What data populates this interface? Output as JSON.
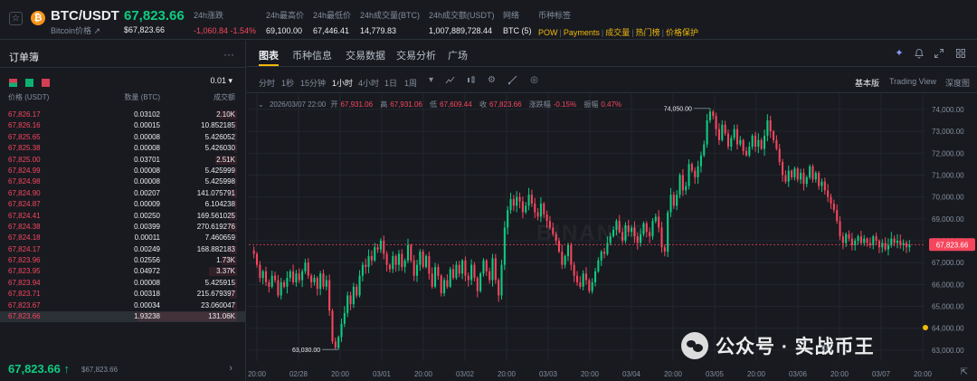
{
  "header": {
    "pair": "BTC/USDT",
    "pair_sub": "Bitcoin价格 ↗",
    "coin_symbol": "₿",
    "price": "67,823.66",
    "price_usd": "$67,823.66",
    "stats": [
      {
        "label": "24h涨跌",
        "value": "-1,060.84 -1.54%",
        "negative": true
      },
      {
        "label": "24h最高价",
        "value": "69,100.00",
        "negative": false
      },
      {
        "label": "24h最低价",
        "value": "67,446.41",
        "negative": false
      },
      {
        "label": "24h成交量(BTC)",
        "value": "14,779.83",
        "negative": false
      },
      {
        "label": "24h成交额(USDT)",
        "value": "1,007,889,728.44",
        "negative": false
      },
      {
        "label": "网络",
        "value": "BTC (5)",
        "negative": false
      }
    ],
    "tags_label": "币种标签",
    "tags": [
      "POW",
      "Payments",
      "成交量",
      "热门榜",
      "价格保护"
    ]
  },
  "orderbook": {
    "title": "订单簿",
    "more": "···",
    "precision": "0.01 ▾",
    "col_price": "价格 (USDT)",
    "col_qty": "数量 (BTC)",
    "col_total": "成交额",
    "rows": [
      {
        "price": "67,826.17",
        "qty": "0.03102",
        "total": "2.10K",
        "depth": 0.18
      },
      {
        "price": "67,826.16",
        "qty": "0.00015",
        "total": "10.852185",
        "depth": 0.04
      },
      {
        "price": "67,825.65",
        "qty": "0.00008",
        "total": "5.426052",
        "depth": 0.03
      },
      {
        "price": "67,825.38",
        "qty": "0.00008",
        "total": "5.426030",
        "depth": 0.03
      },
      {
        "price": "67,825.00",
        "qty": "0.03701",
        "total": "2.51K",
        "depth": 0.22
      },
      {
        "price": "67,824.99",
        "qty": "0.00008",
        "total": "5.425999",
        "depth": 0.03
      },
      {
        "price": "67,824.98",
        "qty": "0.00008",
        "total": "5.425998",
        "depth": 0.03
      },
      {
        "price": "67,824.90",
        "qty": "0.00207",
        "total": "141.075791",
        "depth": 0.06
      },
      {
        "price": "67,824.87",
        "qty": "0.00009",
        "total": "6.104238",
        "depth": 0.03
      },
      {
        "price": "67,824.41",
        "qty": "0.00250",
        "total": "169.561025",
        "depth": 0.07
      },
      {
        "price": "67,824.38",
        "qty": "0.00399",
        "total": "270.619276",
        "depth": 0.08
      },
      {
        "price": "67,824.18",
        "qty": "0.00011",
        "total": "7.460659",
        "depth": 0.03
      },
      {
        "price": "67,824.17",
        "qty": "0.00249",
        "total": "168.882183",
        "depth": 0.07
      },
      {
        "price": "67,823.96",
        "qty": "0.02556",
        "total": "1.73K",
        "depth": 0.15
      },
      {
        "price": "67,823.95",
        "qty": "0.04972",
        "total": "3.37K",
        "depth": 0.28
      },
      {
        "price": "67,823.94",
        "qty": "0.00008",
        "total": "5.425915",
        "depth": 0.03
      },
      {
        "price": "67,823.71",
        "qty": "0.00318",
        "total": "215.679397",
        "depth": 0.07
      },
      {
        "price": "67,823.67",
        "qty": "0.00034",
        "total": "23.060047",
        "depth": 0.04
      },
      {
        "price": "67,823.66",
        "qty": "1.93238",
        "total": "131.06K",
        "depth": 1.0
      }
    ],
    "last_price": "67,823.66 ↑",
    "last_usd": "$67,823.66",
    "arrow": "›"
  },
  "tabs": [
    "图表",
    "币种信息",
    "交易数据",
    "交易分析",
    "广场"
  ],
  "toolbar": {
    "timeframes": [
      "分时",
      "1秒",
      "15分钟",
      "1小时",
      "4小时",
      "1日",
      "1周"
    ],
    "active_timeframe": 3,
    "views": [
      "基本版",
      "Trading View",
      "深度图"
    ]
  },
  "chart_meta": {
    "date": "2026/03/07 22:00",
    "open_label": "开",
    "open": "67,931.06",
    "high_label": "高",
    "high": "67,931.06",
    "low_label": "低",
    "low": "67,609.44",
    "close_label": "收",
    "close": "67,823.66",
    "chg_label": "涨跌幅",
    "chg": "-0.15%",
    "amp_label": "振幅",
    "amp": "0.47%",
    "watermark": "BINANCE",
    "overlay_text": "公众号 · 实战币王"
  },
  "chart_data": {
    "type": "candlestick",
    "interval": "1h",
    "y_axis_labels": [
      "74,000.00",
      "73,000.00",
      "72,000.00",
      "71,000.00",
      "70,000.00",
      "69,000.00",
      "68,000.00",
      "67,000.00",
      "66,000.00",
      "65,000.00",
      "64,000.00",
      "63,000.00"
    ],
    "ylim": [
      62500,
      74700
    ],
    "x_axis_labels": [
      "20:00",
      "02/28",
      "20:00",
      "03/01",
      "20:00",
      "03/02",
      "20:00",
      "03/03",
      "20:00",
      "03/04",
      "20:00",
      "03/05",
      "20:00",
      "03/06",
      "20:00",
      "03/07",
      "20:00"
    ],
    "last_price_label": "67,823.66",
    "max_annotation": "74,050.00",
    "min_annotation": "63,030.00",
    "colors": {
      "up": "#0ecb81",
      "down": "#f6465d",
      "grid": "#22262d",
      "axis_text": "#848e9c"
    },
    "closes": [
      67400,
      66900,
      66300,
      66600,
      66100,
      65900,
      66400,
      66200,
      65500,
      66100,
      65900,
      66300,
      66600,
      66100,
      66500,
      66200,
      66600,
      67000,
      66400,
      66100,
      66300,
      65800,
      66500,
      65900,
      66200,
      64800,
      63400,
      63100,
      63600,
      64200,
      64700,
      65500,
      65100,
      65900,
      65500,
      66400,
      66900,
      66800,
      67300,
      67100,
      67700,
      67600,
      68000,
      67400,
      66900,
      66700,
      67300,
      66900,
      67400,
      66800,
      67100,
      67800,
      67100,
      66400,
      66900,
      67500,
      66800,
      67300,
      66500,
      65900,
      66800,
      66400,
      65600,
      66200,
      65900,
      66700,
      66300,
      66900,
      66500,
      67100,
      66400,
      66200,
      66900,
      66300,
      65700,
      66500,
      67100,
      66600,
      66200,
      67200,
      66200,
      65500,
      66900,
      68600,
      69400,
      69900,
      69600,
      70000,
      69800,
      69300,
      69600,
      70100,
      69700,
      69300,
      69100,
      69700,
      69200,
      68900,
      68600,
      68300,
      68000,
      67500,
      66900,
      67300,
      67800,
      66900,
      66400,
      66100,
      65900,
      66500,
      66200,
      65700,
      66100,
      66600,
      67100,
      67500,
      67400,
      67900,
      68200,
      68500,
      68900,
      68400,
      68000,
      68700,
      68400,
      68600,
      68200,
      67900,
      68300,
      68800,
      68400,
      68200,
      68900,
      69100,
      68600,
      67700,
      67500,
      69300,
      70100,
      69600,
      70100,
      71000,
      70300,
      70500,
      71500,
      71200,
      70900,
      71400,
      71900,
      72400,
      73500,
      73900,
      73700,
      73100,
      72600,
      73300,
      72900,
      72300,
      72700,
      73100,
      72400,
      72600,
      72100,
      71900,
      72300,
      72800,
      72300,
      72600,
      72200,
      72800,
      73500,
      73000,
      72600,
      72200,
      71600,
      71000,
      70700,
      71200,
      70900,
      71300,
      70800,
      71100,
      70600,
      70900,
      71400,
      70800,
      71100,
      70500,
      70700,
      70300,
      70000,
      69700,
      69400,
      68900,
      68200,
      67900,
      68300,
      68100,
      67800,
      68000,
      68200,
      67900,
      68100,
      67900,
      67800,
      68200,
      68000,
      67700,
      67900,
      67600,
      67800,
      68100,
      67900,
      68000,
      67800,
      67900,
      67700,
      67823.66
    ]
  }
}
